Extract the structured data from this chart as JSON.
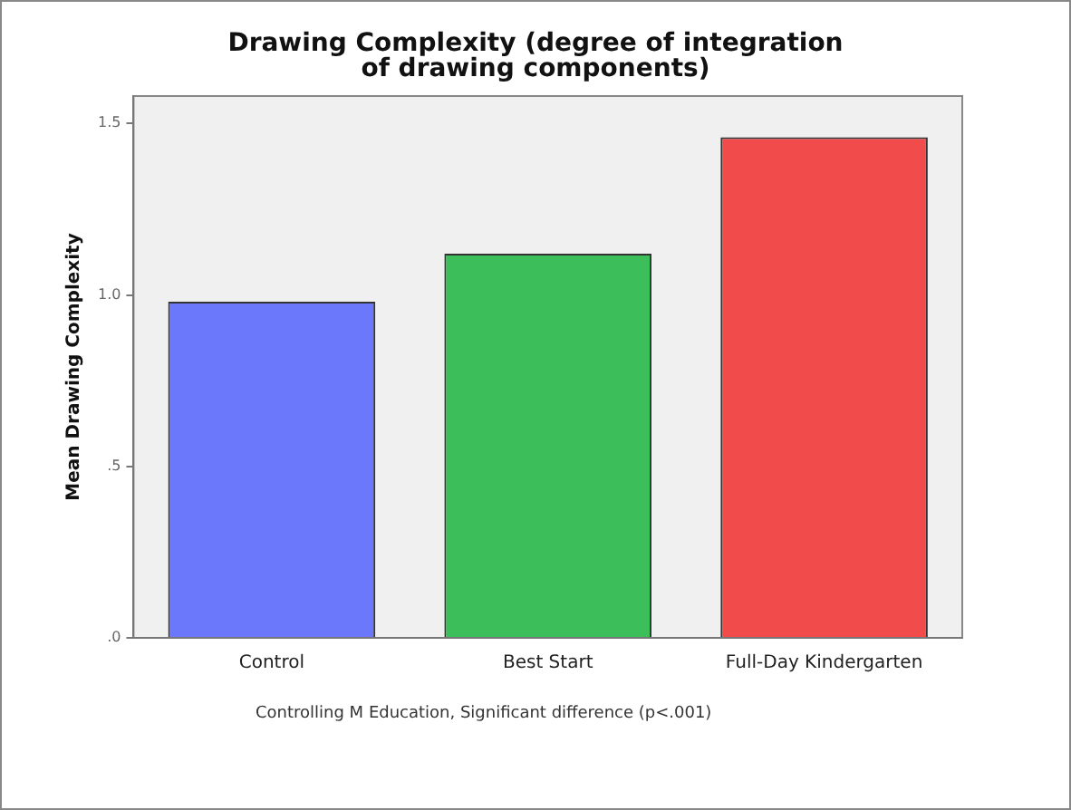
{
  "chart_data": {
    "type": "bar",
    "title": "Drawing Complexity (degree of integration of drawing components)",
    "ylabel": "Mean Drawing Complexity",
    "categories": [
      "Control",
      "Best Start",
      "Full-Day Kindergarten"
    ],
    "values": [
      0.98,
      1.12,
      1.46
    ],
    "colors": [
      "#6b78fb",
      "#3cbf5a",
      "#f24b4b"
    ],
    "ylim": [
      0,
      1.58
    ],
    "yticks": [
      {
        "value": 0,
        "label": ".0"
      },
      {
        "value": 0.5,
        "label": ".5"
      },
      {
        "value": 1,
        "label": "1.0"
      },
      {
        "value": 1.5,
        "label": "1.5"
      }
    ],
    "grid": false,
    "legend": false,
    "annotations": [
      "Controlling M Education, Significant difference (p<.001)"
    ]
  }
}
